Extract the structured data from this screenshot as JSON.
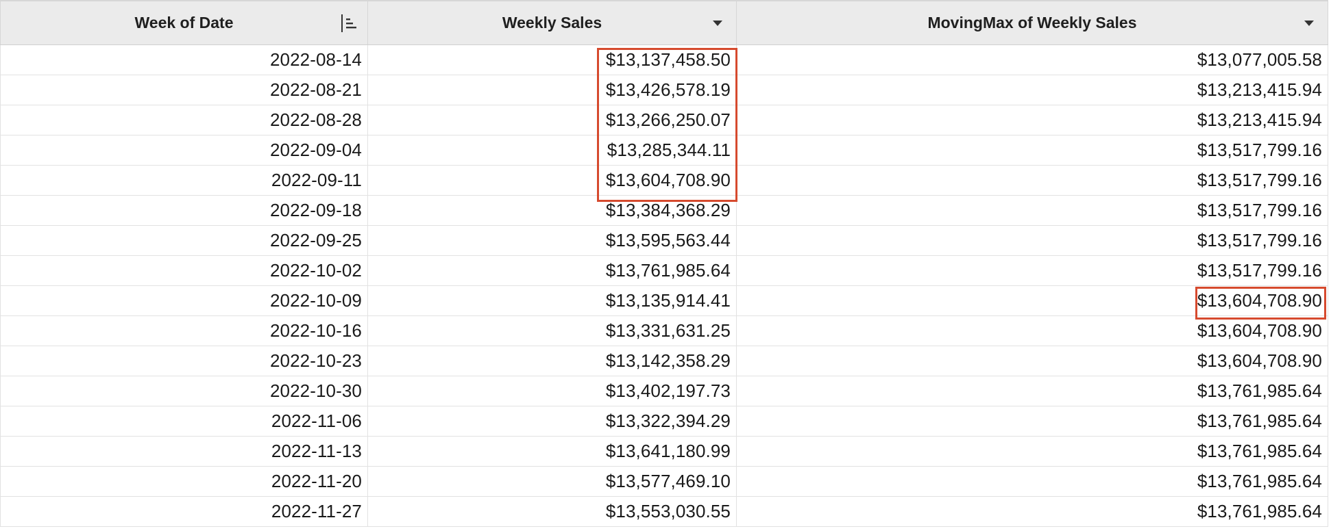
{
  "table": {
    "columns": [
      {
        "label": "Week of Date",
        "control_icon": "sort-bars-icon"
      },
      {
        "label": "Weekly Sales",
        "control_icon": "caret-down-icon"
      },
      {
        "label": "MovingMax of Weekly Sales",
        "control_icon": "caret-down-icon"
      }
    ],
    "rows": [
      {
        "week": "2022-08-14",
        "sales": "$13,137,458.50",
        "moving_max": "$13,077,005.58"
      },
      {
        "week": "2022-08-21",
        "sales": "$13,426,578.19",
        "moving_max": "$13,213,415.94"
      },
      {
        "week": "2022-08-28",
        "sales": "$13,266,250.07",
        "moving_max": "$13,213,415.94"
      },
      {
        "week": "2022-09-04",
        "sales": "$13,285,344.11",
        "moving_max": "$13,517,799.16"
      },
      {
        "week": "2022-09-11",
        "sales": "$13,604,708.90",
        "moving_max": "$13,517,799.16"
      },
      {
        "week": "2022-09-18",
        "sales": "$13,384,368.29",
        "moving_max": "$13,517,799.16"
      },
      {
        "week": "2022-09-25",
        "sales": "$13,595,563.44",
        "moving_max": "$13,517,799.16"
      },
      {
        "week": "2022-10-02",
        "sales": "$13,761,985.64",
        "moving_max": "$13,517,799.16"
      },
      {
        "week": "2022-10-09",
        "sales": "$13,135,914.41",
        "moving_max": "$13,604,708.90"
      },
      {
        "week": "2022-10-16",
        "sales": "$13,331,631.25",
        "moving_max": "$13,604,708.90"
      },
      {
        "week": "2022-10-23",
        "sales": "$13,142,358.29",
        "moving_max": "$13,604,708.90"
      },
      {
        "week": "2022-10-30",
        "sales": "$13,402,197.73",
        "moving_max": "$13,761,985.64"
      },
      {
        "week": "2022-11-06",
        "sales": "$13,322,394.29",
        "moving_max": "$13,761,985.64"
      },
      {
        "week": "2022-11-13",
        "sales": "$13,641,180.99",
        "moving_max": "$13,761,985.64"
      },
      {
        "week": "2022-11-20",
        "sales": "$13,577,469.10",
        "moving_max": "$13,761,985.64"
      },
      {
        "week": "2022-11-27",
        "sales": "$13,553,030.55",
        "moving_max": "$13,761,985.64"
      }
    ]
  },
  "colors": {
    "header_bg": "#ebebeb",
    "highlight": "#d64a2e",
    "grid_line": "#e2e2e2"
  }
}
